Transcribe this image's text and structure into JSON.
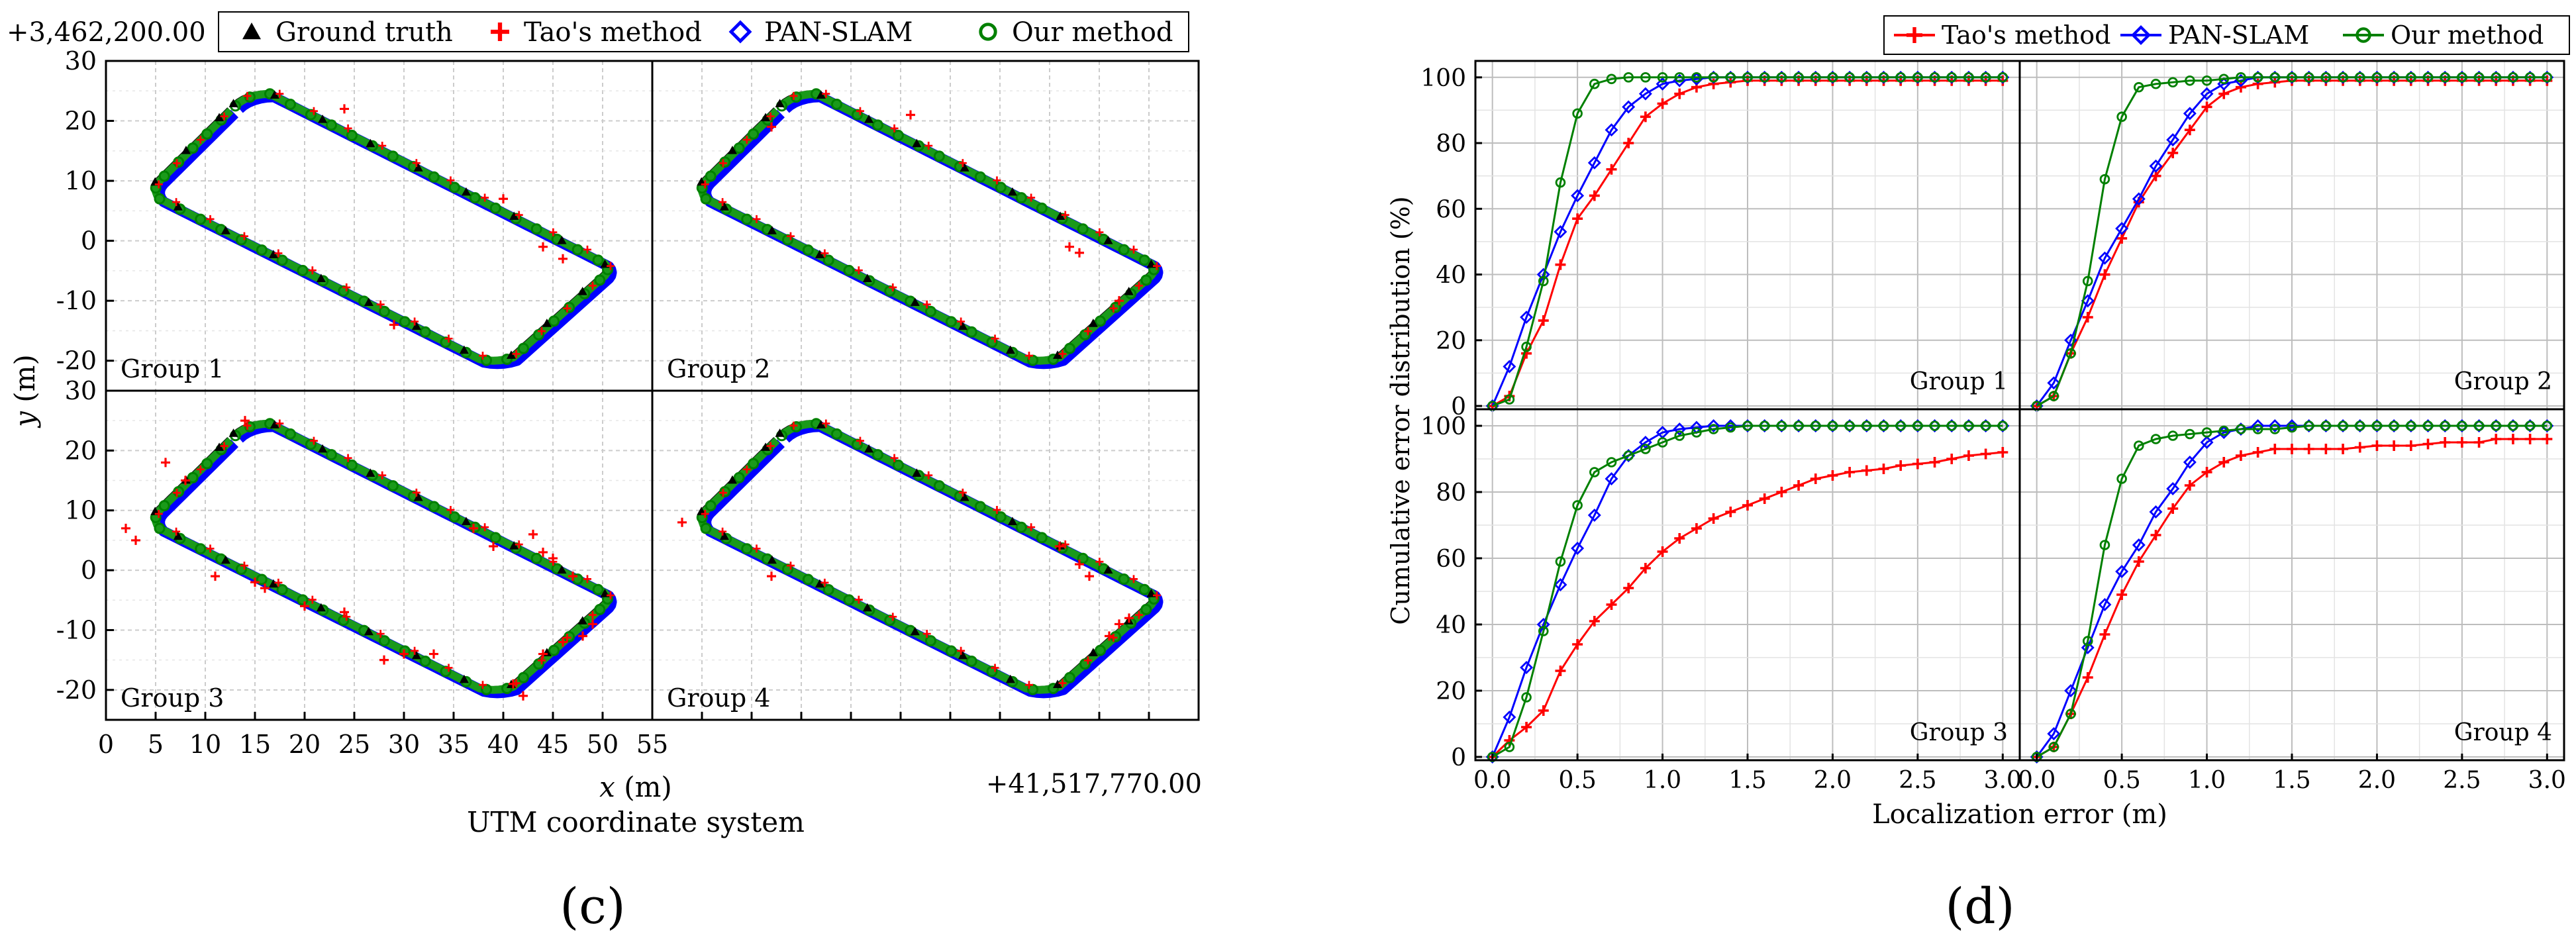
{
  "figure_labels": {
    "c": "(c)",
    "d": "(d)"
  },
  "chart_data": [
    {
      "type": "scatter",
      "panel": "c",
      "title": "UTM coordinate system",
      "xlabel_var": "x",
      "xlabel_unit": " (m)",
      "ylabel_var": "y",
      "ylabel_unit": " (m)",
      "x_offset_label": "+41,517,770.00",
      "y_offset_label": "+3,462,200.00",
      "xlim": [
        0,
        55
      ],
      "ylim": [
        -25,
        30
      ],
      "xticks": [
        0,
        5,
        10,
        15,
        20,
        25,
        30,
        35,
        40,
        45,
        50,
        55
      ],
      "yticks": [
        -20,
        -10,
        0,
        10,
        20,
        30
      ],
      "legend": [
        {
          "label": "Ground truth",
          "marker": "triangle",
          "color": "#000000"
        },
        {
          "label": "Tao's method",
          "marker": "plus",
          "color": "#ff0000"
        },
        {
          "label": "PAN-SLAM",
          "marker": "diamond",
          "color": "#0000ff"
        },
        {
          "label": "Our method",
          "marker": "circle",
          "color": "#008000"
        }
      ],
      "loop_corner_points": [
        [
          4,
          10.5
        ],
        [
          16,
          24.5
        ],
        [
          48,
          -3
        ],
        [
          50,
          -6
        ],
        [
          39,
          -20
        ],
        [
          5,
          8
        ]
      ],
      "panels": [
        {
          "label": "Group 1",
          "tao_outliers": [
            [
              24,
              22
            ],
            [
              40,
              7
            ],
            [
              44,
              -1
            ],
            [
              46,
              -3
            ],
            [
              29,
              -14
            ]
          ]
        },
        {
          "label": "Group 2",
          "tao_outliers": [
            [
              12,
              19
            ],
            [
              26,
              21
            ],
            [
              42,
              -1
            ],
            [
              43,
              -2
            ],
            [
              47,
              -10
            ]
          ]
        },
        {
          "label": "Group 3",
          "tao_outliers": [
            [
              2,
              7
            ],
            [
              3,
              5
            ],
            [
              6,
              18
            ],
            [
              8,
              15
            ],
            [
              11,
              -1
            ],
            [
              15,
              -2
            ],
            [
              16,
              -3
            ],
            [
              14,
              25
            ],
            [
              20,
              -6
            ],
            [
              24,
              -7
            ],
            [
              28,
              -15
            ],
            [
              30,
              -14
            ],
            [
              33,
              -14
            ],
            [
              37,
              7
            ],
            [
              39,
              4
            ],
            [
              41,
              -19
            ],
            [
              42,
              -21
            ],
            [
              44,
              -14
            ],
            [
              46,
              -12
            ],
            [
              48,
              -11
            ],
            [
              49,
              -9
            ],
            [
              43,
              6
            ],
            [
              44,
              3
            ],
            [
              45,
              2
            ],
            [
              47,
              -1
            ]
          ]
        },
        {
          "label": "Group 4",
          "tao_outliers": [
            [
              3,
              8
            ],
            [
              12,
              -1
            ],
            [
              41,
              4
            ],
            [
              43,
              1
            ],
            [
              44,
              -1
            ],
            [
              46,
              -11
            ],
            [
              47,
              -9
            ],
            [
              48,
              -8
            ]
          ]
        }
      ]
    },
    {
      "type": "line",
      "panel": "d",
      "xlabel": "Localization error (m)",
      "ylabel": "Cumulative error distribution (%)",
      "xlim": [
        -0.1,
        3.1
      ],
      "ylim": [
        -1,
        105
      ],
      "xticks": [
        0.0,
        0.5,
        1.0,
        1.5,
        2.0,
        2.5,
        3.0
      ],
      "xtick_labels": [
        "0.0",
        "0.5",
        "1.0",
        "1.5",
        "2.0",
        "2.5",
        "3.0"
      ],
      "yticks": [
        0,
        20,
        40,
        60,
        80,
        100
      ],
      "x": [
        0.0,
        0.1,
        0.2,
        0.3,
        0.4,
        0.5,
        0.6,
        0.7,
        0.8,
        0.9,
        1.0,
        1.1,
        1.2,
        1.3,
        1.4,
        1.5,
        1.6,
        1.7,
        1.8,
        1.9,
        2.0,
        2.1,
        2.2,
        2.3,
        2.4,
        2.5,
        2.6,
        2.7,
        2.8,
        2.9,
        3.0
      ],
      "legend": [
        {
          "label": "Tao's method",
          "color": "#ff0000",
          "marker": "plus"
        },
        {
          "label": "PAN-SLAM",
          "color": "#0000ff",
          "marker": "diamond"
        },
        {
          "label": "Our method",
          "color": "#008000",
          "marker": "circle"
        }
      ],
      "panels": [
        {
          "label": "Group 1",
          "series": [
            {
              "name": "Tao's method",
              "values": [
                0,
                3,
                16,
                26,
                43,
                57,
                64,
                72,
                80,
                88,
                92,
                95,
                97,
                98,
                98.5,
                99,
                99,
                99,
                99,
                99,
                99,
                99,
                99,
                99,
                99,
                99,
                99,
                99,
                99,
                99,
                99
              ]
            },
            {
              "name": "PAN-SLAM",
              "values": [
                0,
                12,
                27,
                40,
                53,
                64,
                74,
                84,
                91,
                95,
                98,
                99,
                99.5,
                100,
                100,
                100,
                100,
                100,
                100,
                100,
                100,
                100,
                100,
                100,
                100,
                100,
                100,
                100,
                100,
                100,
                100
              ]
            },
            {
              "name": "Our method",
              "values": [
                0,
                2,
                18,
                38,
                68,
                89,
                98,
                99.5,
                100,
                100,
                100,
                100,
                100,
                100,
                100,
                100,
                100,
                100,
                100,
                100,
                100,
                100,
                100,
                100,
                100,
                100,
                100,
                100,
                100,
                100,
                100
              ]
            }
          ]
        },
        {
          "label": "Group 2",
          "series": [
            {
              "name": "Tao's method",
              "values": [
                0,
                3,
                16,
                27,
                40,
                51,
                62,
                70,
                77,
                84,
                91,
                95,
                97,
                98,
                98.5,
                99,
                99,
                99,
                99,
                99,
                99,
                99,
                99,
                99,
                99,
                99,
                99,
                99,
                99,
                99,
                99
              ]
            },
            {
              "name": "PAN-SLAM",
              "values": [
                0,
                7,
                20,
                32,
                45,
                54,
                63,
                73,
                81,
                89,
                95,
                98,
                99,
                100,
                100,
                100,
                100,
                100,
                100,
                100,
                100,
                100,
                100,
                100,
                100,
                100,
                100,
                100,
                100,
                100,
                100
              ]
            },
            {
              "name": "Our method",
              "values": [
                0,
                3,
                16,
                38,
                69,
                88,
                97,
                98,
                98.5,
                99,
                99,
                99.5,
                100,
                100,
                100,
                100,
                100,
                100,
                100,
                100,
                100,
                100,
                100,
                100,
                100,
                100,
                100,
                100,
                100,
                100,
                100
              ]
            }
          ]
        },
        {
          "label": "Group 3",
          "series": [
            {
              "name": "Tao's method",
              "values": [
                0,
                5,
                9,
                14,
                26,
                34,
                41,
                46,
                51,
                57,
                62,
                66,
                69,
                72,
                74,
                76,
                78,
                80,
                82,
                84,
                85,
                86,
                86.5,
                87,
                88,
                88.5,
                89,
                90,
                91,
                91.5,
                92
              ]
            },
            {
              "name": "PAN-SLAM",
              "values": [
                0,
                12,
                27,
                40,
                52,
                63,
                73,
                84,
                91,
                95,
                98,
                99,
                99.5,
                100,
                100,
                100,
                100,
                100,
                100,
                100,
                100,
                100,
                100,
                100,
                100,
                100,
                100,
                100,
                100,
                100,
                100
              ]
            },
            {
              "name": "Our method",
              "values": [
                0,
                3,
                18,
                38,
                59,
                76,
                86,
                89,
                91,
                93,
                95,
                97,
                98,
                99,
                99.5,
                100,
                100,
                100,
                100,
                100,
                100,
                100,
                100,
                100,
                100,
                100,
                100,
                100,
                100,
                100,
                100
              ]
            }
          ]
        },
        {
          "label": "Group 4",
          "series": [
            {
              "name": "Tao's method",
              "values": [
                0,
                3,
                13,
                24,
                37,
                49,
                59,
                67,
                75,
                82,
                86,
                89,
                91,
                92,
                93,
                93,
                93,
                93,
                93,
                93.5,
                94,
                94,
                94,
                94.5,
                95,
                95,
                95,
                96,
                96,
                96,
                96
              ]
            },
            {
              "name": "PAN-SLAM",
              "values": [
                0,
                7,
                20,
                33,
                46,
                56,
                64,
                74,
                81,
                89,
                95,
                98,
                99,
                100,
                100,
                100,
                100,
                100,
                100,
                100,
                100,
                100,
                100,
                100,
                100,
                100,
                100,
                100,
                100,
                100,
                100
              ]
            },
            {
              "name": "Our method",
              "values": [
                0,
                3,
                13,
                35,
                64,
                84,
                94,
                96,
                97,
                97.5,
                98,
                98.5,
                99,
                99,
                99,
                99.5,
                100,
                100,
                100,
                100,
                100,
                100,
                100,
                100,
                100,
                100,
                100,
                100,
                100,
                100,
                100
              ]
            }
          ]
        }
      ]
    }
  ]
}
